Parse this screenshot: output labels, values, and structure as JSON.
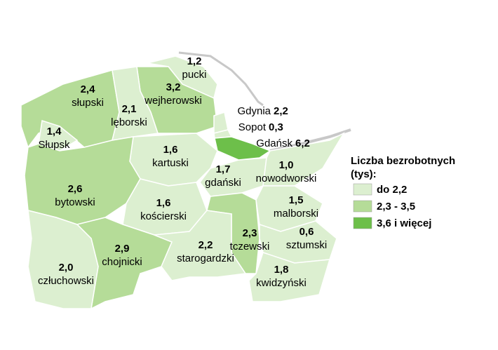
{
  "regions": [
    {
      "name": "pucki",
      "value": "1,2",
      "color": "#dcefd0"
    },
    {
      "name": "słupski",
      "value": "2,4",
      "color": "#b5dc98"
    },
    {
      "name": "wejherowski",
      "value": "3,2",
      "color": "#b5dc98"
    },
    {
      "name": "lęborski",
      "value": "2,1",
      "color": "#dcefd0"
    },
    {
      "name": "Słupsk",
      "value": "1,4",
      "color": "#dcefd0"
    },
    {
      "name": "kartuski",
      "value": "1,6",
      "color": "#dcefd0"
    },
    {
      "name": "gdański",
      "value": "1,7",
      "color": "#dcefd0"
    },
    {
      "name": "nowodworski",
      "value": "1,0",
      "color": "#dcefd0"
    },
    {
      "name": "bytowski",
      "value": "2,6",
      "color": "#b5dc98"
    },
    {
      "name": "kościerski",
      "value": "1,6",
      "color": "#dcefd0"
    },
    {
      "name": "malborski",
      "value": "1,5",
      "color": "#dcefd0"
    },
    {
      "name": "tczewski",
      "value": "2,3",
      "color": "#b5dc98"
    },
    {
      "name": "sztumski",
      "value": "0,6",
      "color": "#dcefd0"
    },
    {
      "name": "chojnicki",
      "value": "2,9",
      "color": "#b5dc98"
    },
    {
      "name": "starogardzki",
      "value": "2,2",
      "color": "#dcefd0"
    },
    {
      "name": "człuchowski",
      "value": "2,0",
      "color": "#dcefd0"
    },
    {
      "name": "kwidzyński",
      "value": "1,8",
      "color": "#dcefd0"
    },
    {
      "name": "Gdynia",
      "value": "2,2",
      "color": "#dcefd0"
    },
    {
      "name": "Sopot",
      "value": "0,3",
      "color": "#dcefd0"
    },
    {
      "name": "Gdańsk",
      "value": "6,2",
      "color": "#6dbf4a"
    }
  ],
  "legend": {
    "title": [
      "Liczba bezrobotnych",
      "(tys):"
    ],
    "items": [
      {
        "label": "do 2,2",
        "color": "#dcefd0"
      },
      {
        "label": "2,3 - 3,5",
        "color": "#b5dc98"
      },
      {
        "label": "3,6 i więcej",
        "color": "#6dbf4a"
      }
    ]
  }
}
